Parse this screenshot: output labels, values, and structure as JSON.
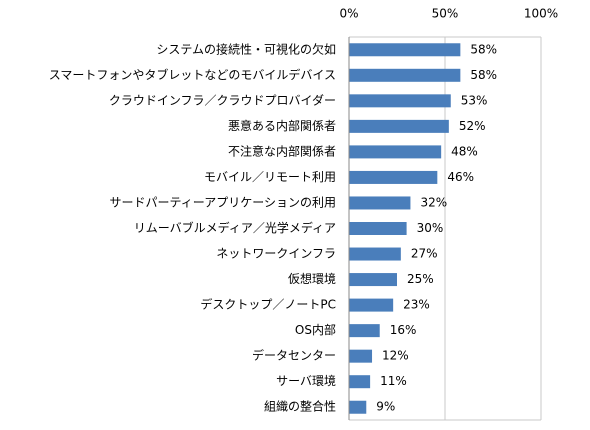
{
  "chart_data": {
    "type": "hbar",
    "categories": [
      "システムの接続性・可視化の欠如",
      "スマートフォンやタブレットなどのモバイルデバイス",
      "クラウドインフラ／クラウドプロバイダー",
      "悪意ある内部関係者",
      "不注意な内部関係者",
      "モバイル／リモート利用",
      "サードパーティーアプリケーションの利用",
      "リムーバブルメディア／光学メディア",
      "ネットワークインフラ",
      "仮想環境",
      "デスクトップ／ノートPC",
      "OS内部",
      "データセンター",
      "サーバ環境",
      "組織の整合性"
    ],
    "values": [
      58,
      58,
      53,
      52,
      48,
      46,
      32,
      30,
      27,
      25,
      23,
      16,
      12,
      11,
      9
    ],
    "value_labels": [
      "58%",
      "58%",
      "53%",
      "52%",
      "48%",
      "46%",
      "32%",
      "30%",
      "27%",
      "25%",
      "23%",
      "16%",
      "12%",
      "11%",
      "9%"
    ],
    "color": "#4a7ebb",
    "xlim": [
      0,
      100
    ],
    "xticks": [
      {
        "value": 0,
        "label": "0%"
      },
      {
        "value": 50,
        "label": "50%"
      },
      {
        "value": 100,
        "label": "100%"
      }
    ],
    "grid": true
  }
}
